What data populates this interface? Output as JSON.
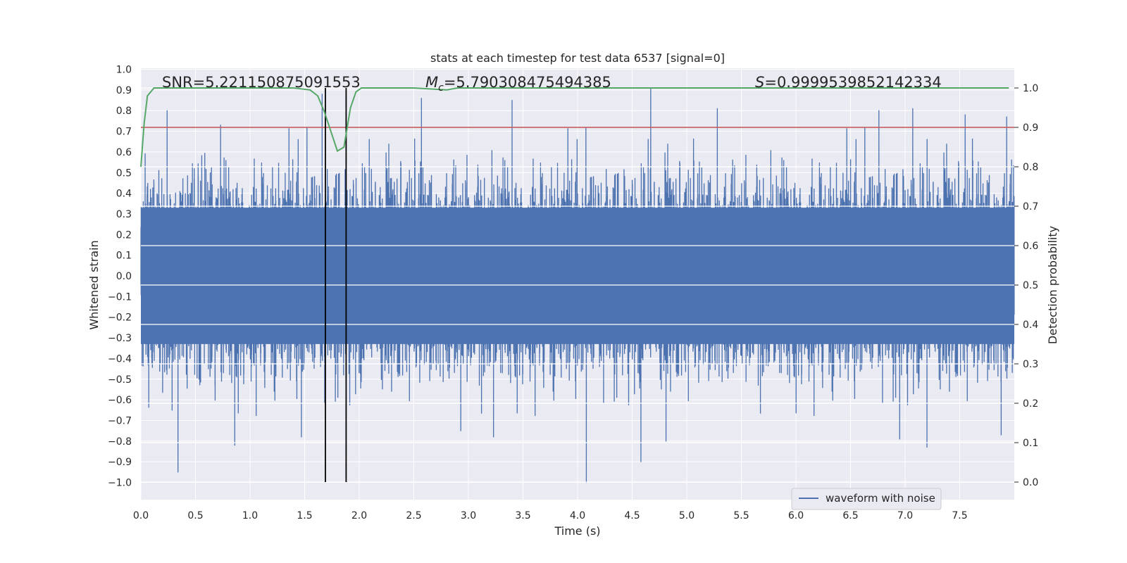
{
  "chart_data": {
    "type": "line",
    "title": "stats at each timestep for test data 6537 [signal=0]",
    "xlabel": "Time (s)",
    "ylabel_left": "Whitened strain",
    "ylabel_right": "Detection probability",
    "xlim": [
      0.0,
      8.0
    ],
    "ylim_left": [
      -1.0,
      1.0
    ],
    "ylim_right": [
      0.0,
      1.0
    ],
    "x_ticks": [
      "0.0",
      "0.5",
      "1.0",
      "1.5",
      "2.0",
      "2.5",
      "3.0",
      "3.5",
      "4.0",
      "4.5",
      "5.0",
      "5.5",
      "6.0",
      "6.5",
      "7.0",
      "7.5"
    ],
    "y_left_ticks": [
      "1.0",
      "0.9",
      "0.8",
      "0.7",
      "0.6",
      "0.5",
      "0.4",
      "0.3",
      "0.2",
      "0.1",
      "0.0",
      "−0.1",
      "−0.2",
      "−0.3",
      "−0.4",
      "−0.5",
      "−0.6",
      "−0.7",
      "−0.8",
      "−0.9",
      "−1.0"
    ],
    "y_right_ticks": [
      "1.0",
      "0.9",
      "0.8",
      "0.7",
      "0.6",
      "0.5",
      "0.4",
      "0.3",
      "0.2",
      "0.1",
      "0.0"
    ],
    "annotations": {
      "snr": "SNR=5.221150875091553",
      "mc_symbol": "M",
      "mc_sub": "c",
      "mc_value": "=5.790308475494385",
      "s_symbol": "S",
      "s_value": "=0.9999539852142334"
    },
    "threshold_right": 0.9,
    "vertical_markers_x": [
      1.69,
      1.88
    ],
    "series": [
      {
        "name": "waveform with noise",
        "axis": "left",
        "color": "#4c72b0",
        "sample_rate": 2048,
        "core_amplitude": 0.33,
        "peaks": [
          {
            "x": 0.24,
            "y": 0.8
          },
          {
            "x": 0.34,
            "y": -0.95
          },
          {
            "x": 0.73,
            "y": 0.73
          },
          {
            "x": 0.86,
            "y": -0.82
          },
          {
            "x": 1.47,
            "y": -0.78
          },
          {
            "x": 1.66,
            "y": 0.88
          },
          {
            "x": 2.57,
            "y": 0.86
          },
          {
            "x": 2.93,
            "y": -0.75
          },
          {
            "x": 3.23,
            "y": -0.78
          },
          {
            "x": 3.4,
            "y": 0.85
          },
          {
            "x": 4.08,
            "y": -1.0
          },
          {
            "x": 4.58,
            "y": -0.9
          },
          {
            "x": 4.67,
            "y": 0.91
          },
          {
            "x": 4.81,
            "y": -0.8
          },
          {
            "x": 5.28,
            "y": 0.81
          },
          {
            "x": 6.76,
            "y": 0.8
          },
          {
            "x": 6.95,
            "y": -0.79
          },
          {
            "x": 7.07,
            "y": 0.81
          },
          {
            "x": 7.2,
            "y": -0.83
          },
          {
            "x": 7.55,
            "y": 0.78
          },
          {
            "x": 7.88,
            "y": -0.77
          },
          {
            "x": 7.93,
            "y": 0.77
          }
        ]
      },
      {
        "name": "detection probability",
        "axis": "right",
        "color": "#55a868",
        "x": [
          0.0,
          0.03,
          0.06,
          0.12,
          0.25,
          0.6,
          1.0,
          1.4,
          1.55,
          1.62,
          1.68,
          1.74,
          1.8,
          1.86,
          1.92,
          1.97,
          2.02,
          2.1,
          2.5,
          2.8,
          2.9,
          3.5,
          4.5,
          5.5,
          6.5,
          7.5,
          7.95
        ],
        "values": [
          0.8,
          0.91,
          0.98,
          1.0,
          1.0,
          1.0,
          1.0,
          1.0,
          0.995,
          0.98,
          0.94,
          0.89,
          0.84,
          0.85,
          0.95,
          0.99,
          1.0,
          1.0,
          1.0,
          0.995,
          1.0,
          1.0,
          1.0,
          1.0,
          1.0,
          1.0,
          1.0
        ]
      }
    ],
    "threshold_color": "#c44e52",
    "legend": {
      "label": "waveform with noise",
      "placement": "lower-right"
    }
  }
}
